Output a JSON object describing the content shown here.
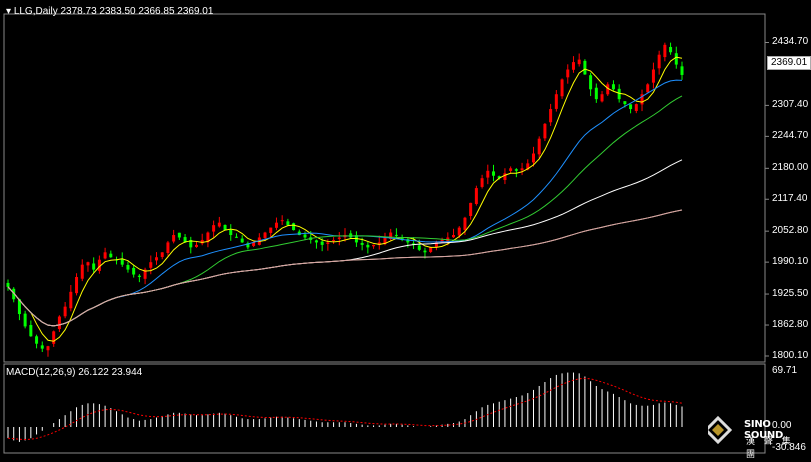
{
  "header": {
    "symbol_label": "LLG,Daily",
    "ohlc": "2378.73 2383.50 2366.85 2369.01",
    "indicator_label": "MACD(12,26,9) 26.122 23.944"
  },
  "price_axis": {
    "ticks": [
      "2434.70",
      "2307.40",
      "2244.70",
      "2180.00",
      "2117.40",
      "2052.80",
      "1990.10",
      "1925.50",
      "1862.80",
      "1800.10"
    ],
    "current_price": "2369.01"
  },
  "macd_axis": {
    "top": "69.71",
    "mid": "0.00",
    "bottom": "-30.846"
  },
  "logo": {
    "name": "SINO SOUND",
    "sub": "漢 聲 集 團"
  },
  "colors": {
    "up": "#ff0000",
    "down": "#00ff00",
    "ma5": "#ffff00",
    "ma20": "#1e90ff",
    "ma30": "#32cd32",
    "ma60": "#ffffff",
    "ma120": "#f5deb3",
    "ma200": "#d3a0a0",
    "macd_hist": "#ffffff",
    "macd_signal": "#ff0000"
  },
  "chart_data": {
    "type": "candlestick",
    "ylim": [
      1800.1,
      2460
    ],
    "closes": [
      1940,
      1915,
      1885,
      1860,
      1840,
      1825,
      1815,
      1820,
      1850,
      1880,
      1900,
      1930,
      1960,
      1985,
      1990,
      1975,
      1995,
      2010,
      2000,
      1995,
      1985,
      1975,
      1965,
      1960,
      1975,
      1990,
      2000,
      2010,
      2030,
      2045,
      2040,
      2030,
      2020,
      2025,
      2035,
      2050,
      2065,
      2070,
      2055,
      2045,
      2040,
      2030,
      2020,
      2030,
      2040,
      2050,
      2060,
      2070,
      2075,
      2065,
      2055,
      2045,
      2040,
      2035,
      2030,
      2025,
      2030,
      2035,
      2040,
      2045,
      2040,
      2030,
      2025,
      2020,
      2025,
      2030,
      2040,
      2050,
      2045,
      2035,
      2030,
      2025,
      2015,
      2010,
      2020,
      2030,
      2035,
      2040,
      2045,
      2060,
      2080,
      2110,
      2140,
      2160,
      2175,
      2165,
      2160,
      2170,
      2180,
      2175,
      2180,
      2190,
      2210,
      2240,
      2270,
      2300,
      2330,
      2360,
      2380,
      2395,
      2400,
      2370,
      2340,
      2320,
      2330,
      2350,
      2340,
      2320,
      2310,
      2300,
      2310,
      2330,
      2350,
      2380,
      2410,
      2430,
      2415,
      2390,
      2369
    ],
    "macd_hist": [
      -15,
      -18,
      -20,
      -18,
      -15,
      -10,
      -5,
      0,
      5,
      10,
      15,
      20,
      25,
      28,
      30,
      30,
      29,
      27,
      24,
      20,
      16,
      12,
      10,
      8,
      9,
      10,
      12,
      14,
      16,
      18,
      18,
      17,
      16,
      15,
      15,
      16,
      17,
      18,
      17,
      15,
      13,
      11,
      10,
      10,
      10,
      11,
      12,
      13,
      13,
      12,
      11,
      10,
      9,
      8,
      7,
      6,
      6,
      6,
      6,
      6,
      5,
      4,
      3,
      2,
      2,
      2,
      3,
      4,
      4,
      3,
      2,
      1,
      0,
      0,
      1,
      2,
      3,
      4,
      5,
      7,
      10,
      15,
      20,
      25,
      28,
      30,
      32,
      34,
      36,
      38,
      40,
      43,
      47,
      52,
      57,
      62,
      66,
      68,
      69,
      69,
      68,
      64,
      58,
      52,
      48,
      45,
      42,
      38,
      34,
      30,
      28,
      27,
      27,
      28,
      30,
      31,
      30,
      28,
      26
    ]
  }
}
